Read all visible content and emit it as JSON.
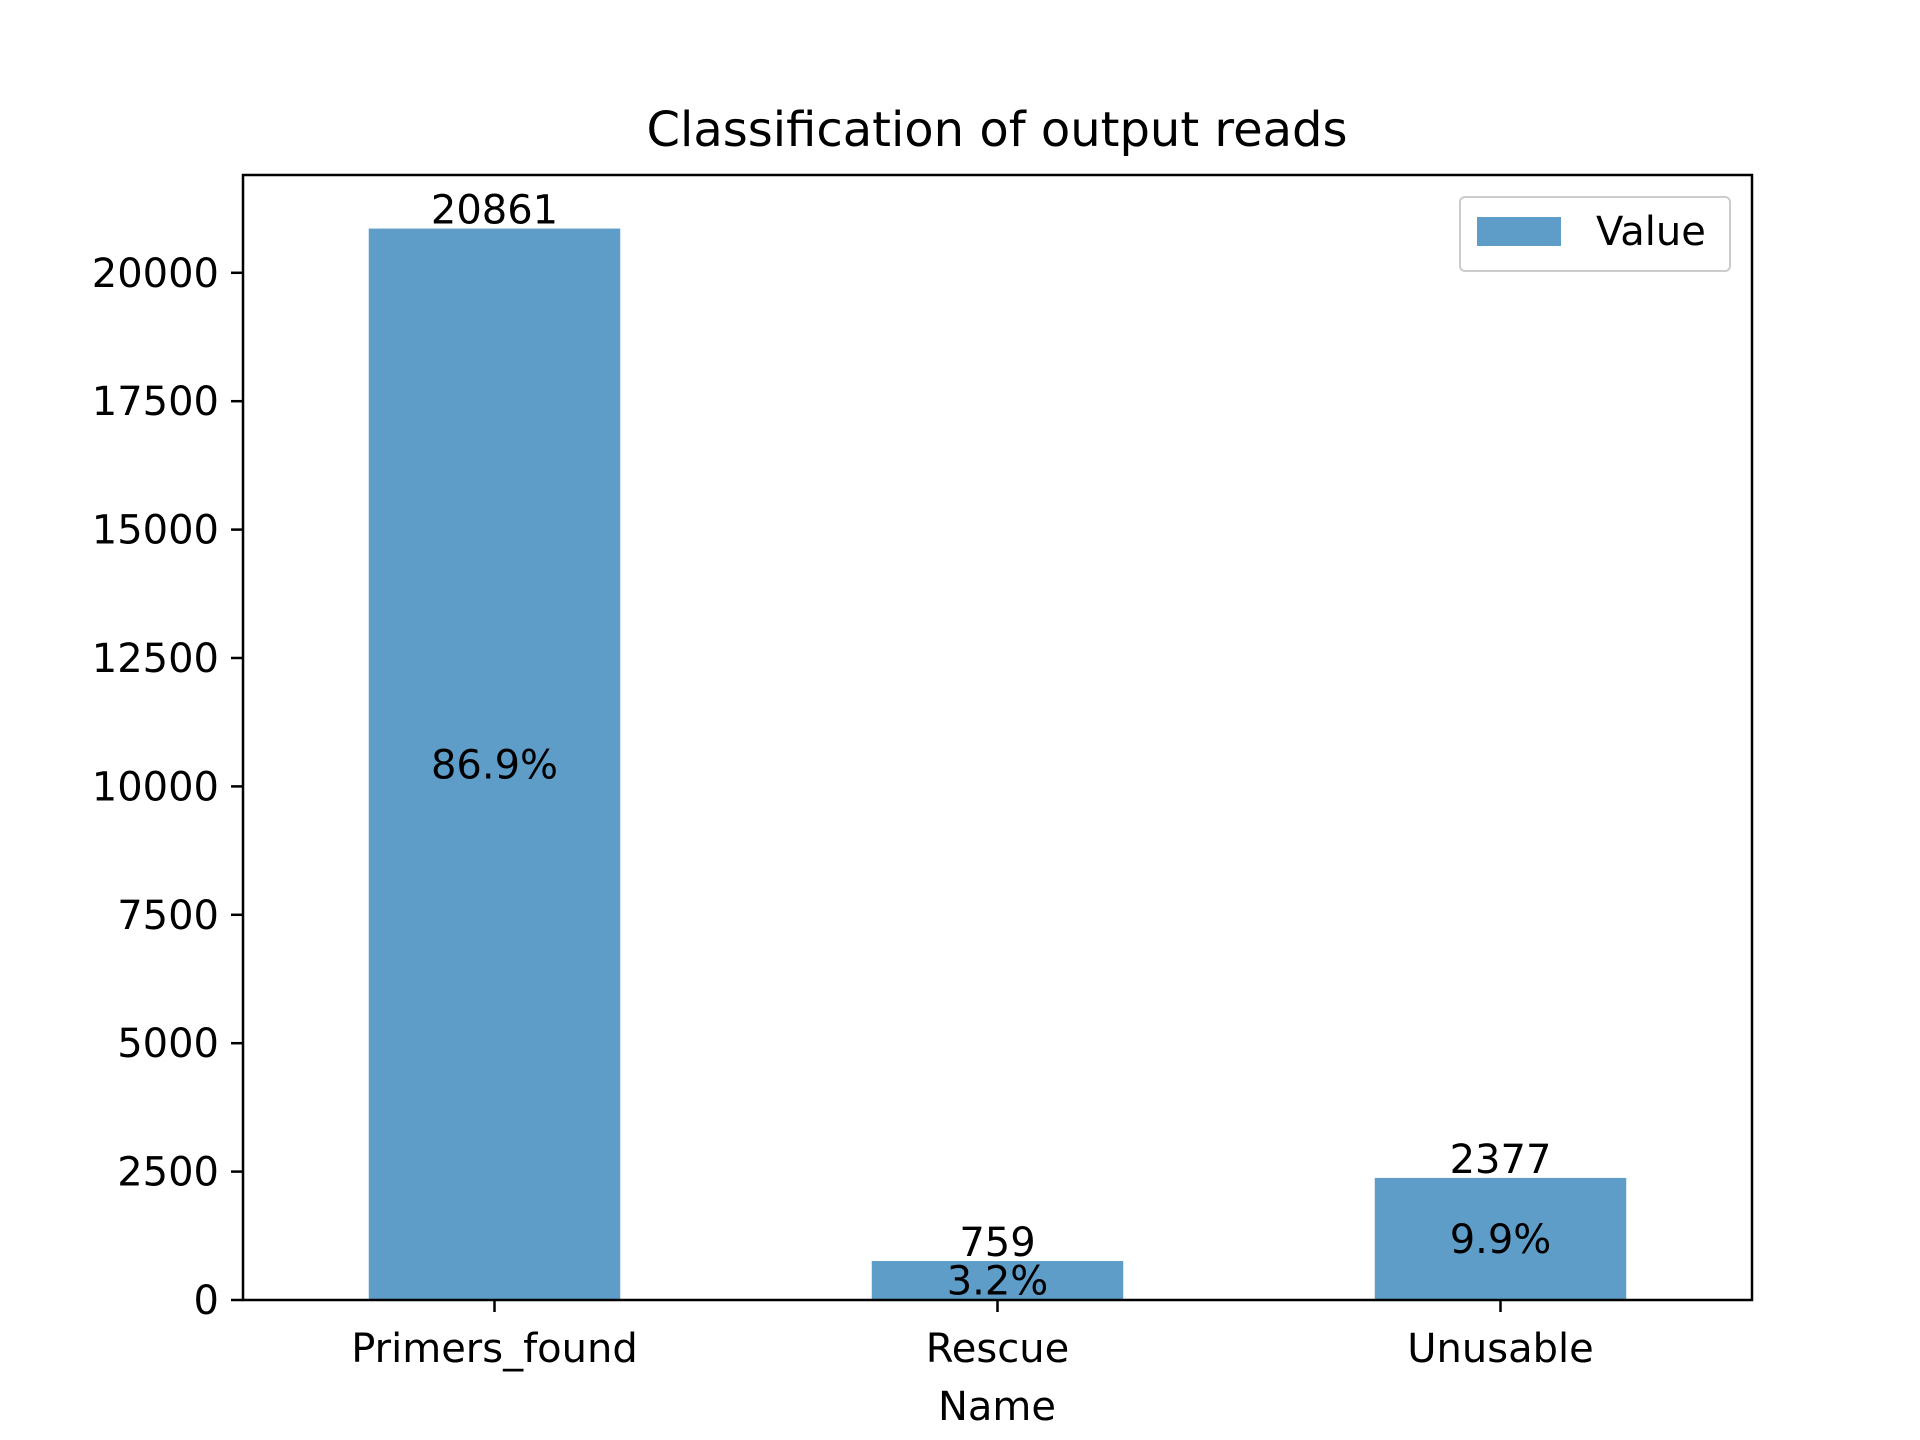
{
  "chart_data": {
    "type": "bar",
    "title": "Classification of output reads",
    "xlabel": "Name",
    "ylabel": "",
    "categories": [
      "Primers_found",
      "Rescue",
      "Unusable"
    ],
    "series": [
      {
        "name": "Value",
        "values": [
          20861,
          759,
          2377
        ]
      }
    ],
    "value_labels": [
      "20861",
      "759",
      "2377"
    ],
    "percent_labels": [
      "86.9%",
      "3.2%",
      "9.9%"
    ],
    "ylim": [
      0,
      21904
    ],
    "yticks": [
      0,
      2500,
      5000,
      7500,
      10000,
      12500,
      15000,
      17500,
      20000
    ],
    "ytick_labels": [
      "0",
      "2500",
      "5000",
      "7500",
      "10000",
      "12500",
      "15000",
      "17500",
      "20000"
    ],
    "grid": false,
    "legend_position": "upper right",
    "bar_color": "#5f9dc9"
  }
}
